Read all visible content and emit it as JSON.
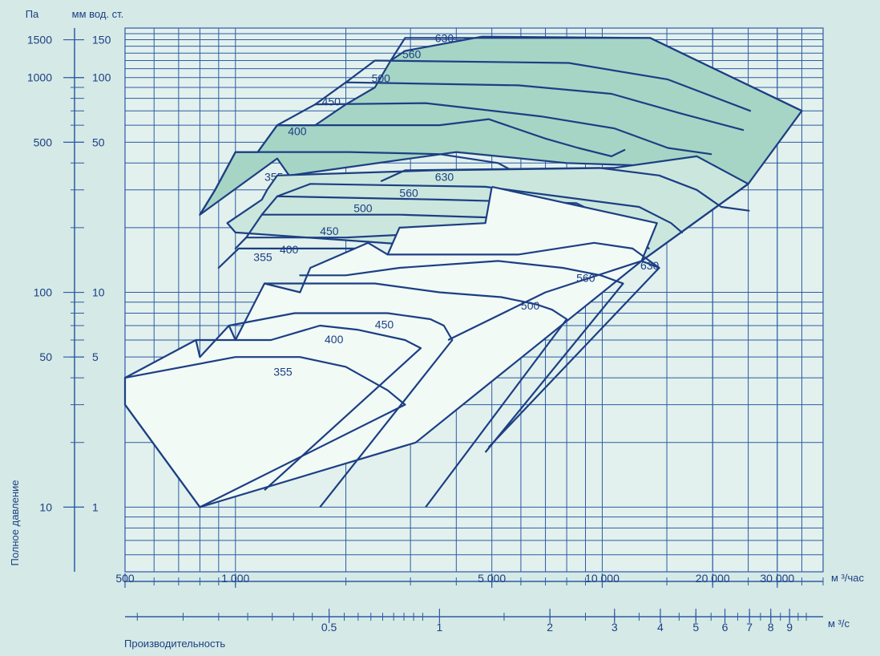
{
  "colors": {
    "background": "#d5e9e6",
    "plot_area": "#e2f1ed",
    "grid": "#2e5aa6",
    "curve": "#1c3f84",
    "text": "#1c3f84",
    "fill_high": "#a6d5c6",
    "fill_mid": "#cbe7dd",
    "fill_low": "#f2faf6"
  },
  "chart_data": {
    "type": "area",
    "title": "",
    "x_scale": "log",
    "y_scale": "log",
    "xlim": [
      500,
      40000
    ],
    "ylim": [
      5,
      1700
    ],
    "grid": true,
    "y_left_unit": "Па",
    "y_right_unit": "мм вод. ст.",
    "y_label": "Полное давление",
    "x_label": "Производительность",
    "x_unit_top": "м ³/час",
    "x_unit_bottom": "м ³/с",
    "y_ticks_pa": [
      {
        "value": 10,
        "label": "10"
      },
      {
        "value": 50,
        "label": "50"
      },
      {
        "value": 100,
        "label": "100"
      },
      {
        "value": 500,
        "label": "500"
      },
      {
        "value": 1000,
        "label": "1000"
      },
      {
        "value": 1500,
        "label": "1500"
      }
    ],
    "y_ticks_mm": [
      {
        "value": 10,
        "label": "1"
      },
      {
        "value": 50,
        "label": "5"
      },
      {
        "value": 100,
        "label": "10"
      },
      {
        "value": 500,
        "label": "50"
      },
      {
        "value": 1000,
        "label": "100"
      },
      {
        "value": 1500,
        "label": "150"
      }
    ],
    "x_ticks_top": [
      {
        "value": 500,
        "label": "500"
      },
      {
        "value": 1000,
        "label": "1 000"
      },
      {
        "value": 5000,
        "label": "5 000"
      },
      {
        "value": 10000,
        "label": "10 000"
      },
      {
        "value": 20000,
        "label": "20 000"
      },
      {
        "value": 30000,
        "label": "30 000"
      }
    ],
    "x_ticks_bottom": [
      {
        "value": 0.5,
        "label": "0.5"
      },
      {
        "value": 1,
        "label": "1"
      },
      {
        "value": 2,
        "label": "2"
      },
      {
        "value": 3,
        "label": "3"
      },
      {
        "value": 4,
        "label": "4"
      },
      {
        "value": 5,
        "label": "5"
      },
      {
        "value": 6,
        "label": "6"
      },
      {
        "value": 7,
        "label": "7"
      },
      {
        "value": 8,
        "label": "8"
      },
      {
        "value": 9,
        "label": "9"
      }
    ],
    "families": [
      {
        "tier": "high",
        "fill": "fill_high",
        "envelope": [
          [
            4700,
            1550
          ],
          [
            13500,
            1530
          ],
          [
            35000,
            700
          ],
          [
            25000,
            320
          ],
          [
            20000,
            380
          ],
          [
            8000,
            400
          ],
          [
            4000,
            450
          ],
          [
            1400,
            350
          ],
          [
            1300,
            420
          ],
          [
            800,
            230
          ],
          [
            880,
            300
          ],
          [
            1000,
            450
          ],
          [
            1150,
            450
          ],
          [
            1300,
            600
          ],
          [
            1650,
            600
          ],
          [
            2000,
            750
          ],
          [
            2400,
            900
          ],
          [
            2650,
            1200
          ],
          [
            2900,
            1330
          ],
          [
            4700,
            1550
          ]
        ],
        "curves": [
          {
            "label": "355",
            "label_at": [
              1200,
              330
            ],
            "points": [
              [
                800,
                230
              ],
              [
                880,
                300
              ],
              [
                1000,
                450
              ],
              [
                2050,
                450
              ],
              [
                3600,
                440
              ],
              [
                5200,
                400
              ],
              [
                6200,
                340
              ],
              [
                7100,
                350
              ]
            ]
          },
          {
            "label": "400",
            "label_at": [
              1390,
              540
            ],
            "points": [
              [
                1150,
                450
              ],
              [
                1300,
                600
              ],
              [
                3600,
                600
              ],
              [
                4900,
                640
              ],
              [
                7000,
                520
              ],
              [
                8600,
                470
              ],
              [
                10600,
                430
              ],
              [
                11500,
                460
              ]
            ]
          },
          {
            "label": "450",
            "label_at": [
              1720,
              740
            ],
            "points": [
              [
                1300,
                600
              ],
              [
                1650,
                750
              ],
              [
                3300,
                760
              ],
              [
                6800,
                660
              ],
              [
                10800,
                580
              ],
              [
                15100,
                470
              ],
              [
                19800,
                440
              ]
            ]
          },
          {
            "label": "500",
            "label_at": [
              2350,
              950
            ],
            "points": [
              [
                1650,
                750
              ],
              [
                2000,
                950
              ],
              [
                5900,
                920
              ],
              [
                10600,
                840
              ],
              [
                16400,
                680
              ],
              [
                24200,
                570
              ]
            ]
          },
          {
            "label": "560",
            "label_at": [
              2850,
              1230
            ],
            "points": [
              [
                2000,
                950
              ],
              [
                2400,
                1200
              ],
              [
                8100,
                1170
              ],
              [
                15100,
                980
              ],
              [
                25300,
                700
              ]
            ]
          },
          {
            "label": "630",
            "label_at": [
              3500,
              1460
            ],
            "points": [
              [
                2650,
                1200
              ],
              [
                2900,
                1530
              ],
              [
                13500,
                1530
              ],
              [
                35000,
                700
              ]
            ]
          }
        ]
      },
      {
        "tier": "mid",
        "fill": "fill_mid",
        "envelope": [
          [
            3500,
            370
          ],
          [
            10800,
            380
          ],
          [
            18100,
            430
          ],
          [
            25000,
            320
          ],
          [
            12800,
            140
          ],
          [
            1000,
            190
          ],
          [
            950,
            210
          ],
          [
            1180,
            270
          ],
          [
            1220,
            300
          ],
          [
            1300,
            350
          ],
          [
            3500,
            370
          ]
        ],
        "curves": [
          {
            "label": "355",
            "label_at": [
              1120,
              140
            ],
            "points": [
              [
                900,
                130
              ],
              [
                1020,
                160
              ],
              [
                2150,
                160
              ],
              [
                3000,
                140
              ],
              [
                4100,
                130
              ],
              [
                4600,
                120
              ],
              [
                5100,
                100
              ]
            ]
          },
          {
            "label": "400",
            "label_at": [
              1320,
              152
            ],
            "points": [
              [
                1000,
                160
              ],
              [
                1070,
                180
              ],
              [
                2000,
                180
              ],
              [
                3800,
                190
              ],
              [
                5900,
                170
              ],
              [
                7700,
                150
              ],
              [
                8800,
                130
              ]
            ]
          },
          {
            "label": "450",
            "label_at": [
              1700,
              185
            ],
            "points": [
              [
                1070,
                180
              ],
              [
                1180,
                230
              ],
              [
                2800,
                230
              ],
              [
                6400,
                220
              ],
              [
                9200,
                190
              ],
              [
                11200,
                150
              ]
            ]
          },
          {
            "label": "500",
            "label_at": [
              2100,
              236
            ],
            "points": [
              [
                1180,
                230
              ],
              [
                1300,
                280
              ],
              [
                3700,
                270
              ],
              [
                8500,
                260
              ],
              [
                11700,
                200
              ],
              [
                13400,
                160
              ]
            ]
          },
          {
            "label": "560",
            "label_at": [
              2800,
              278
            ],
            "points": [
              [
                1300,
                280
              ],
              [
                1600,
                320
              ],
              [
                4800,
                310
              ],
              [
                12600,
                250
              ],
              [
                15400,
                210
              ],
              [
                16500,
                190
              ]
            ]
          },
          {
            "label": "630",
            "label_at": [
              3500,
              330
            ],
            "points": [
              [
                2500,
                330
              ],
              [
                2900,
                370
              ],
              [
                9800,
                380
              ],
              [
                14300,
                350
              ],
              [
                18100,
                300
              ],
              [
                21100,
                250
              ],
              [
                25100,
                240
              ]
            ]
          }
        ]
      },
      {
        "tier": "low",
        "fill": "fill_low",
        "envelope": [
          [
            5000,
            310
          ],
          [
            4800,
            210
          ],
          [
            2800,
            200
          ],
          [
            2600,
            150
          ],
          [
            2300,
            170
          ],
          [
            1600,
            130
          ],
          [
            1500,
            100
          ],
          [
            1200,
            110
          ],
          [
            1000,
            60
          ],
          [
            960,
            70
          ],
          [
            800,
            50
          ],
          [
            780,
            60
          ],
          [
            500,
            40
          ],
          [
            500,
            30
          ],
          [
            800,
            10
          ],
          [
            3100,
            20
          ],
          [
            12800,
            140
          ],
          [
            14100,
            210
          ],
          [
            5000,
            310
          ]
        ],
        "curves": [
          {
            "label": "355",
            "label_at": [
              1270,
              41
            ],
            "points": [
              [
                500,
                40
              ],
              [
                1000,
                50
              ],
              [
                1500,
                50
              ],
              [
                2000,
                45
              ],
              [
                2600,
                35
              ],
              [
                2900,
                30
              ]
            ]
          },
          {
            "label": "400",
            "label_at": [
              1750,
              58
            ],
            "points": [
              [
                780,
                60
              ],
              [
                1250,
                60
              ],
              [
                1700,
                70
              ],
              [
                2150,
                67
              ],
              [
                2900,
                60
              ],
              [
                3200,
                55
              ]
            ]
          },
          {
            "label": "450",
            "label_at": [
              2400,
              68
            ],
            "points": [
              [
                960,
                70
              ],
              [
                1450,
                80
              ],
              [
                2000,
                80
              ],
              [
                2600,
                80
              ],
              [
                3400,
                75
              ],
              [
                3700,
                70
              ],
              [
                3900,
                60
              ]
            ]
          },
          {
            "label": "500",
            "label_at": [
              6000,
              83
            ],
            "points": [
              [
                1200,
                110
              ],
              [
                2400,
                110
              ],
              [
                3600,
                100
              ],
              [
                5300,
                95
              ],
              [
                6600,
                88
              ],
              [
                7300,
                83
              ],
              [
                8000,
                75
              ]
            ]
          },
          {
            "label": "560",
            "label_at": [
              8500,
              112
            ],
            "points": [
              [
                1500,
                120
              ],
              [
                2000,
                120
              ],
              [
                2800,
                130
              ],
              [
                5200,
                140
              ],
              [
                7800,
                130
              ],
              [
                9900,
                120
              ],
              [
                11400,
                110
              ]
            ]
          },
          {
            "label": "630",
            "label_at": [
              12700,
              128
            ],
            "points": [
              [
                2600,
                150
              ],
              [
                3300,
                150
              ],
              [
                5900,
                150
              ],
              [
                9500,
                170
              ],
              [
                12100,
                160
              ],
              [
                14300,
                130
              ]
            ]
          }
        ]
      }
    ],
    "fill_lines_low": [
      [
        [
          500,
          30
        ],
        [
          800,
          10
        ],
        [
          2900,
          30
        ]
      ],
      [
        [
          1200,
          12
        ],
        [
          3200,
          55
        ]
      ],
      [
        [
          1700,
          10
        ],
        [
          3900,
          60
        ]
      ],
      [
        [
          3300,
          10
        ],
        [
          8000,
          75
        ]
      ],
      [
        [
          4800,
          18
        ],
        [
          11400,
          110
        ]
      ],
      [
        [
          4900,
          19
        ],
        [
          14300,
          130
        ],
        [
          12800,
          140
        ]
      ]
    ],
    "fill_lines_mid": [
      [
        [
          3800,
          60
        ],
        [
          7000,
          100
        ],
        [
          12800,
          140
        ],
        [
          25000,
          320
        ]
      ]
    ]
  }
}
